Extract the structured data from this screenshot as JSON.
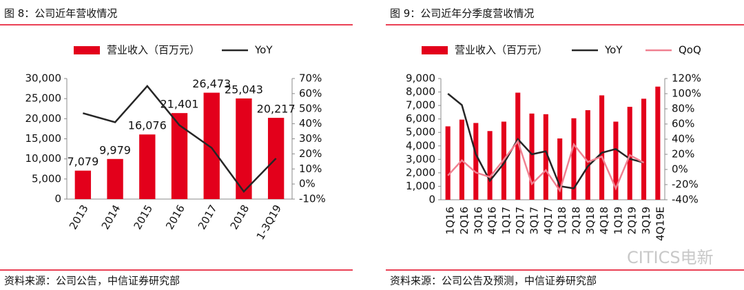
{
  "chart_data": [
    {
      "type": "bar",
      "title": "图 8：公司近年营收情况",
      "categories": [
        "2013",
        "2014",
        "2015",
        "2016",
        "2017",
        "2018",
        "1-3Q19"
      ],
      "series": [
        {
          "name": "营业收入（百万元）",
          "color": "#e3001b",
          "values": [
            7079,
            9979,
            16076,
            21401,
            26473,
            25043,
            20217
          ],
          "value_labels": [
            "7,079",
            "9,979",
            "16,076",
            "21,401",
            "26,473",
            "25,043",
            "20,217"
          ]
        },
        {
          "name": "YoY",
          "color": "#262626",
          "axis": "y2",
          "values": [
            47,
            41,
            65,
            39,
            24,
            -5,
            17
          ]
        }
      ],
      "ylim": [
        0,
        30000
      ],
      "yticks": [
        0,
        {
          "value": 5000,
          "label": "5,000"
        },
        {
          "value": 10000,
          "label": "10,000"
        },
        {
          "value": 15000,
          "label": "15,000"
        },
        {
          "value": 20000,
          "label": "20,000"
        },
        {
          "value": 25000,
          "label": "25,000"
        },
        {
          "value": 30000,
          "label": "30,000"
        }
      ],
      "y2lim": [
        -10,
        70
      ],
      "y2ticks": [
        {
          "value": -10,
          "label": "-10%"
        },
        {
          "value": 0,
          "label": "0%"
        },
        {
          "value": 10,
          "label": "10%"
        },
        {
          "value": 20,
          "label": "20%"
        },
        {
          "value": 30,
          "label": "30%"
        },
        {
          "value": 40,
          "label": "40%"
        },
        {
          "value": 50,
          "label": "50%"
        },
        {
          "value": 60,
          "label": "60%"
        },
        {
          "value": 70,
          "label": "70%"
        }
      ],
      "legend": "top",
      "grid": false,
      "source": "资料来源：公司公告，中信证券研究部"
    },
    {
      "type": "bar",
      "title": "图 9：公司近年分季度营收情况",
      "categories": [
        "1Q16",
        "2Q16",
        "3Q16",
        "4Q16",
        "1Q17",
        "2Q17",
        "3Q17",
        "4Q17",
        "1Q18",
        "2Q18",
        "3Q18",
        "4Q18",
        "1Q19",
        "2Q19",
        "3Q19",
        "4Q19E"
      ],
      "series": [
        {
          "name": "营业收入（百万元）",
          "color": "#e3001b",
          "values": [
            5450,
            5950,
            5700,
            5100,
            5800,
            7950,
            6400,
            6350,
            4550,
            6050,
            6650,
            7750,
            5800,
            6900,
            7500,
            8400
          ]
        },
        {
          "name": "YoY",
          "color": "#262626",
          "axis": "y2",
          "values": [
            100,
            85,
            20,
            -15,
            8,
            40,
            20,
            24,
            -22,
            -25,
            4,
            22,
            27,
            14,
            9,
            null
          ]
        },
        {
          "name": "QoQ",
          "color": "#f08090",
          "axis": "y2",
          "values": [
            -8,
            12,
            -4,
            -10,
            13,
            37,
            -19,
            -1,
            -28,
            33,
            10,
            17,
            -25,
            19,
            9,
            null
          ]
        }
      ],
      "ylim": [
        0,
        9000
      ],
      "yticks": [
        0,
        {
          "value": 1000,
          "label": "1,000"
        },
        {
          "value": 2000,
          "label": "2,000"
        },
        {
          "value": 3000,
          "label": "3,000"
        },
        {
          "value": 4000,
          "label": "4,000"
        },
        {
          "value": 5000,
          "label": "5,000"
        },
        {
          "value": 6000,
          "label": "6,000"
        },
        {
          "value": 7000,
          "label": "7,000"
        },
        {
          "value": 8000,
          "label": "8,000"
        },
        {
          "value": 9000,
          "label": "9,000"
        }
      ],
      "y2lim": [
        -40,
        120
      ],
      "y2ticks": [
        {
          "value": -40,
          "label": "-40%"
        },
        {
          "value": -20,
          "label": "-20%"
        },
        {
          "value": 0,
          "label": "0%"
        },
        {
          "value": 20,
          "label": "20%"
        },
        {
          "value": 40,
          "label": "40%"
        },
        {
          "value": 60,
          "label": "60%"
        },
        {
          "value": 80,
          "label": "80%"
        },
        {
          "value": 100,
          "label": "100%"
        },
        {
          "value": 120,
          "label": "120%"
        }
      ],
      "legend": "top",
      "grid": false,
      "source": "资料来源：公司公告及预测，中信证券研究部"
    }
  ],
  "watermark": "CITICS电新"
}
